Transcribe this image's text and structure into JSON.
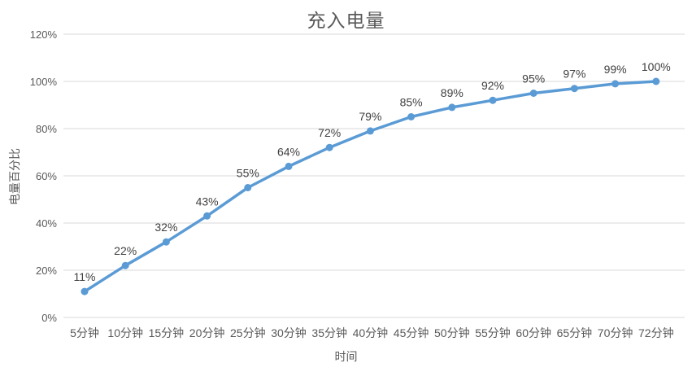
{
  "chart_data": {
    "type": "line",
    "title": "充入电量",
    "xlabel": "时间",
    "ylabel": "电量百分比",
    "categories": [
      "5分钟",
      "10分钟",
      "15分钟",
      "20分钟",
      "25分钟",
      "30分钟",
      "35分钟",
      "40分钟",
      "45分钟",
      "50分钟",
      "55分钟",
      "60分钟",
      "65分钟",
      "70分钟",
      "72分钟"
    ],
    "values": [
      11,
      22,
      32,
      43,
      55,
      64,
      72,
      79,
      85,
      89,
      92,
      95,
      97,
      99,
      100
    ],
    "point_labels": [
      "11%",
      "22%",
      "32%",
      "43%",
      "55%",
      "64%",
      "72%",
      "79%",
      "85%",
      "89%",
      "92%",
      "95%",
      "97%",
      "99%",
      "100%"
    ],
    "y_tick_values": [
      0,
      20,
      40,
      60,
      80,
      100,
      120
    ],
    "y_tick_labels": [
      "0%",
      "20%",
      "40%",
      "60%",
      "80%",
      "100%",
      "120%"
    ],
    "ylim": [
      0,
      120
    ],
    "grid": true,
    "legend_position": "none",
    "colors": {
      "line": "#5b9bd5",
      "marker": "#5b9bd5",
      "grid": "#d9d9d9",
      "tick_text": "#595959",
      "title_text": "#595959",
      "data_label_text": "#404040",
      "background": "#ffffff"
    }
  }
}
